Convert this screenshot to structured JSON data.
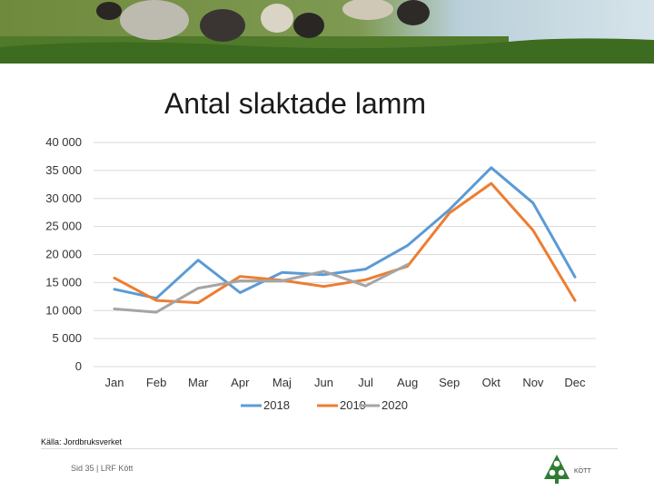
{
  "slide": {
    "title": "Antal slaktade lamm",
    "source": "Källa: Jordbruksverket",
    "page_info": "Sid 35 | LRF Kött",
    "logo_text": "KÖTT"
  },
  "chart_data": {
    "type": "line",
    "title": "Antal slaktade lamm",
    "categories": [
      "Jan",
      "Feb",
      "Mar",
      "Apr",
      "Maj",
      "Jun",
      "Jul",
      "Aug",
      "Sep",
      "Okt",
      "Nov",
      "Dec"
    ],
    "ylim": [
      0,
      40000
    ],
    "yticks": [
      0,
      5000,
      10000,
      15000,
      20000,
      25000,
      30000,
      35000,
      40000
    ],
    "ytick_labels": [
      "0",
      "5 000",
      "10 000",
      "15 000",
      "20 000",
      "25 000",
      "30 000",
      "35 000",
      "40 000"
    ],
    "grid": true,
    "legend_position": "bottom",
    "series": [
      {
        "name": "2018",
        "color": "#5b9bd5",
        "values": [
          13800,
          12200,
          19000,
          13200,
          16800,
          16400,
          17400,
          21600,
          28000,
          35500,
          29200,
          16000
        ]
      },
      {
        "name": "2019",
        "color": "#ed7d31",
        "values": [
          15800,
          11800,
          11400,
          16100,
          15400,
          14300,
          15500,
          17900,
          27400,
          32700,
          24300,
          11800
        ]
      },
      {
        "name": "2020",
        "color": "#a5a5a5",
        "values": [
          10300,
          9700,
          14000,
          15300,
          15300,
          17000,
          14400,
          18200,
          null,
          null,
          null,
          null
        ]
      }
    ]
  }
}
